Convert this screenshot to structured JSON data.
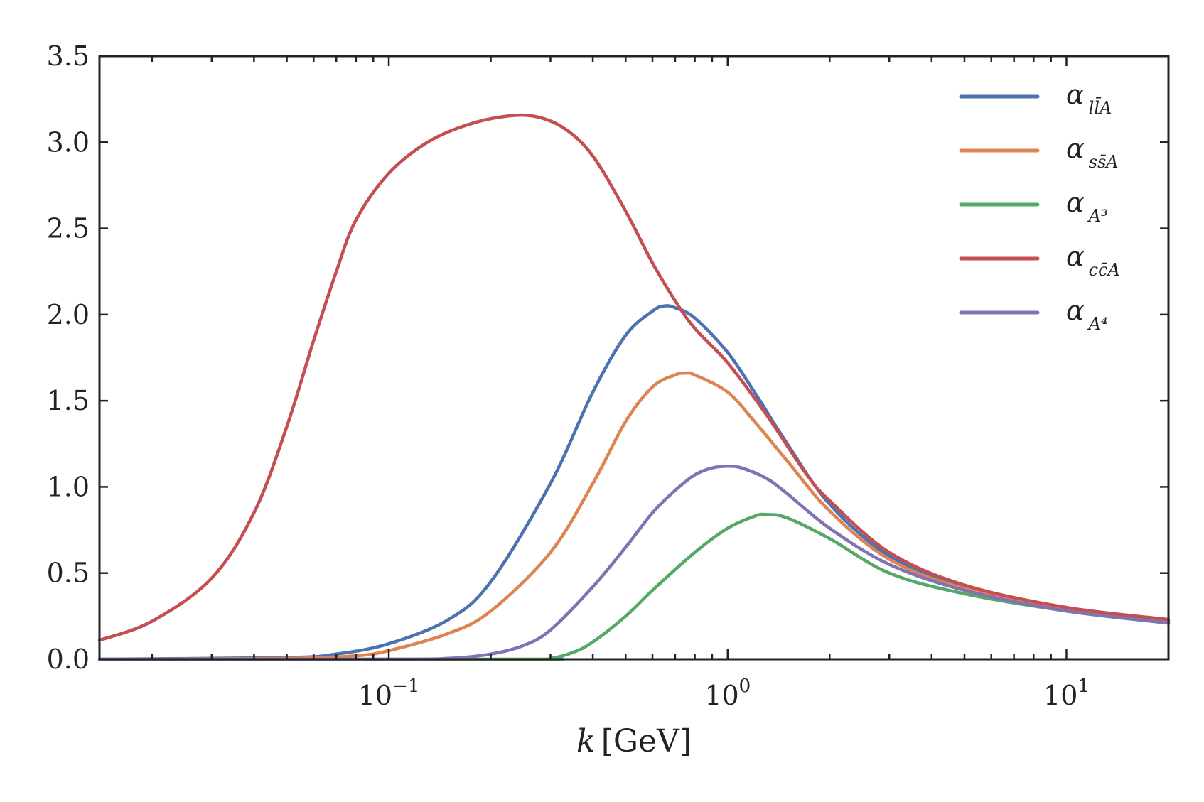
{
  "chart_data": {
    "type": "line",
    "title": "",
    "xscale": "log",
    "xlim": [
      0.014,
      20
    ],
    "ylim": [
      0.0,
      3.5
    ],
    "xlabel": {
      "var": "k",
      "unit": "[GeV]"
    },
    "ylabel": "",
    "x_ticks": [
      {
        "value": 0.1,
        "base": "10",
        "exp": "−1"
      },
      {
        "value": 1,
        "base": "10",
        "exp": "0"
      },
      {
        "value": 10,
        "base": "10",
        "exp": "1"
      }
    ],
    "y_ticks": [
      "0.0",
      "0.5",
      "1.0",
      "1.5",
      "2.0",
      "2.5",
      "3.0",
      "3.5"
    ],
    "grid": false,
    "legend_position": "top-right",
    "series": [
      {
        "name": "α_{l l̄ A}",
        "greek": "α",
        "sub": "ll̄A",
        "color": "#4c72b0",
        "points": [
          [
            0.014,
            0.0
          ],
          [
            0.05,
            0.01
          ],
          [
            0.07,
            0.03
          ],
          [
            0.1,
            0.09
          ],
          [
            0.15,
            0.23
          ],
          [
            0.2,
            0.45
          ],
          [
            0.3,
            1.02
          ],
          [
            0.4,
            1.55
          ],
          [
            0.5,
            1.88
          ],
          [
            0.6,
            2.02
          ],
          [
            0.65,
            2.05
          ],
          [
            0.7,
            2.04
          ],
          [
            0.8,
            1.98
          ],
          [
            1.0,
            1.78
          ],
          [
            1.2,
            1.55
          ],
          [
            1.5,
            1.25
          ],
          [
            2.0,
            0.9
          ],
          [
            3.0,
            0.6
          ],
          [
            5.0,
            0.42
          ],
          [
            10.0,
            0.3
          ],
          [
            20.0,
            0.23
          ]
        ]
      },
      {
        "name": "α_{s s̄ A}",
        "greek": "α",
        "sub": "ss̄A",
        "color": "#dd8452",
        "points": [
          [
            0.014,
            0.0
          ],
          [
            0.05,
            0.005
          ],
          [
            0.08,
            0.02
          ],
          [
            0.1,
            0.05
          ],
          [
            0.15,
            0.15
          ],
          [
            0.2,
            0.28
          ],
          [
            0.3,
            0.62
          ],
          [
            0.4,
            1.02
          ],
          [
            0.5,
            1.38
          ],
          [
            0.6,
            1.58
          ],
          [
            0.7,
            1.65
          ],
          [
            0.75,
            1.66
          ],
          [
            0.8,
            1.65
          ],
          [
            1.0,
            1.55
          ],
          [
            1.2,
            1.38
          ],
          [
            1.5,
            1.15
          ],
          [
            2.0,
            0.86
          ],
          [
            3.0,
            0.58
          ],
          [
            5.0,
            0.41
          ],
          [
            10.0,
            0.29
          ],
          [
            20.0,
            0.22
          ]
        ]
      },
      {
        "name": "α_{A³}",
        "greek": "α",
        "sub": "A³",
        "color": "#55a868",
        "points": [
          [
            0.014,
            0.0
          ],
          [
            0.25,
            0.0
          ],
          [
            0.3,
            0.005
          ],
          [
            0.35,
            0.04
          ],
          [
            0.4,
            0.1
          ],
          [
            0.5,
            0.25
          ],
          [
            0.6,
            0.4
          ],
          [
            0.8,
            0.62
          ],
          [
            1.0,
            0.76
          ],
          [
            1.2,
            0.83
          ],
          [
            1.3,
            0.84
          ],
          [
            1.5,
            0.82
          ],
          [
            2.0,
            0.7
          ],
          [
            3.0,
            0.5
          ],
          [
            5.0,
            0.38
          ],
          [
            10.0,
            0.28
          ],
          [
            20.0,
            0.21
          ]
        ]
      },
      {
        "name": "α_{c c̄ A}",
        "greek": "α",
        "sub": "cc̄A",
        "color": "#c44e52",
        "points": [
          [
            0.014,
            0.11
          ],
          [
            0.02,
            0.22
          ],
          [
            0.03,
            0.47
          ],
          [
            0.04,
            0.85
          ],
          [
            0.05,
            1.35
          ],
          [
            0.06,
            1.85
          ],
          [
            0.07,
            2.25
          ],
          [
            0.08,
            2.55
          ],
          [
            0.1,
            2.82
          ],
          [
            0.13,
            3.0
          ],
          [
            0.17,
            3.1
          ],
          [
            0.22,
            3.15
          ],
          [
            0.27,
            3.15
          ],
          [
            0.33,
            3.08
          ],
          [
            0.4,
            2.92
          ],
          [
            0.5,
            2.6
          ],
          [
            0.6,
            2.3
          ],
          [
            0.7,
            2.08
          ],
          [
            0.8,
            1.92
          ],
          [
            1.0,
            1.72
          ],
          [
            1.3,
            1.42
          ],
          [
            1.7,
            1.08
          ],
          [
            2.0,
            0.92
          ],
          [
            3.0,
            0.62
          ],
          [
            5.0,
            0.43
          ],
          [
            10.0,
            0.3
          ],
          [
            20.0,
            0.23
          ]
        ]
      },
      {
        "name": "α_{A⁴}",
        "greek": "α",
        "sub": "A⁴",
        "color": "#8172b3",
        "points": [
          [
            0.014,
            0.0
          ],
          [
            0.1,
            0.0
          ],
          [
            0.15,
            0.005
          ],
          [
            0.2,
            0.03
          ],
          [
            0.25,
            0.08
          ],
          [
            0.3,
            0.17
          ],
          [
            0.4,
            0.42
          ],
          [
            0.5,
            0.65
          ],
          [
            0.6,
            0.85
          ],
          [
            0.7,
            0.98
          ],
          [
            0.8,
            1.07
          ],
          [
            0.9,
            1.11
          ],
          [
            1.0,
            1.12
          ],
          [
            1.1,
            1.11
          ],
          [
            1.3,
            1.05
          ],
          [
            1.5,
            0.96
          ],
          [
            2.0,
            0.76
          ],
          [
            3.0,
            0.55
          ],
          [
            5.0,
            0.4
          ],
          [
            10.0,
            0.28
          ],
          [
            20.0,
            0.21
          ]
        ]
      }
    ]
  }
}
